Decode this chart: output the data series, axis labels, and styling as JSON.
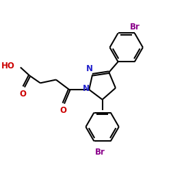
{
  "bg_color": "#ffffff",
  "bond_color": "#000000",
  "N_color": "#2222cc",
  "O_color": "#cc0000",
  "Br_color": "#8b008b",
  "line_width": 1.5,
  "font_size_atom": 8.5,
  "xlim": [
    0.0,
    10.0
  ],
  "ylim": [
    0.5,
    10.5
  ],
  "figsize": [
    2.5,
    2.5
  ],
  "dpi": 100
}
